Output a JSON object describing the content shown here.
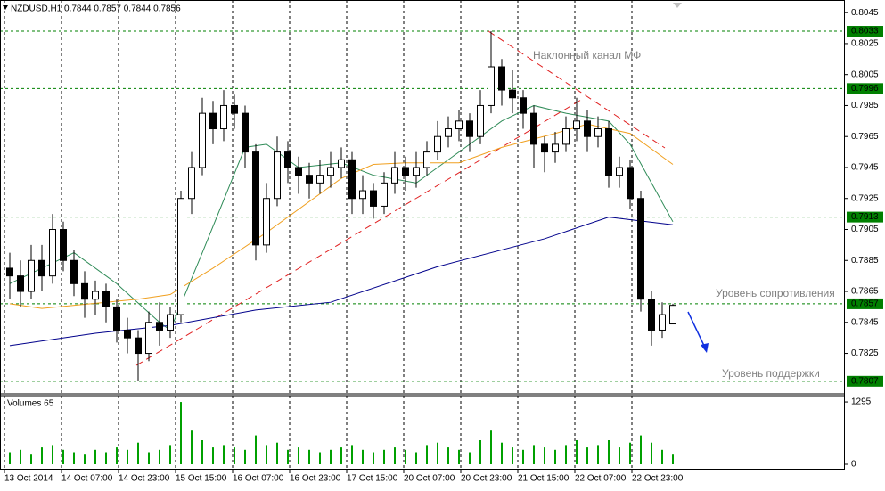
{
  "chart_data": {
    "type": "candlestick",
    "title": "NZDUSD,H1  0.7844 0.7857 0.7844 0.7856",
    "x": [
      1.5,
      4.5,
      7.5,
      10.5,
      13.5,
      16.5,
      19.5,
      22.5,
      25.5,
      28.5,
      31.5,
      34.5,
      37.5,
      40.5,
      43.5,
      46.5,
      49.5,
      52.5,
      55.5,
      58.5,
      61.5,
      64.5,
      67.5,
      70.5,
      73.5,
      76.5,
      79.5,
      82.5,
      85.5,
      88.5,
      91.5,
      94.5,
      97.5,
      100.5,
      103.5,
      106.5,
      109.5,
      112.5,
      115.5,
      118.5,
      121.5,
      124.5,
      127.5,
      130.5,
      133.5,
      136.5,
      139.5,
      142.5,
      145.5,
      148.5,
      151.5,
      154.5,
      157.5,
      160.5,
      163.5,
      166.5,
      169.5,
      172.5,
      175.5,
      178.5,
      181.5,
      184.5,
      187.5
    ],
    "open": [
      0.788,
      0.7875,
      0.7865,
      0.7885,
      0.7875,
      0.7905,
      0.7885,
      0.787,
      0.786,
      0.7865,
      0.7855,
      0.784,
      0.7835,
      0.7825,
      0.7845,
      0.784,
      0.785,
      0.7925,
      0.7945,
      0.798,
      0.797,
      0.7985,
      0.798,
      0.7955,
      0.7895,
      0.7925,
      0.7955,
      0.7945,
      0.794,
      0.7935,
      0.794,
      0.7945,
      0.795,
      0.7925,
      0.793,
      0.792,
      0.7935,
      0.7945,
      0.794,
      0.7945,
      0.7955,
      0.7965,
      0.797,
      0.7975,
      0.7965,
      0.7985,
      0.801,
      0.7995,
      0.799,
      0.798,
      0.796,
      0.7955,
      0.796,
      0.797,
      0.7975,
      0.7965,
      0.797,
      0.794,
      0.7945,
      0.7925,
      0.786,
      0.784,
      0.7844
    ],
    "high": [
      0.789,
      0.7885,
      0.7895,
      0.7895,
      0.7915,
      0.791,
      0.7892,
      0.7878,
      0.7872,
      0.787,
      0.786,
      0.7848,
      0.784,
      0.7852,
      0.7858,
      0.7855,
      0.793,
      0.7955,
      0.799,
      0.7988,
      0.7995,
      0.7992,
      0.7985,
      0.796,
      0.7935,
      0.7965,
      0.7962,
      0.7952,
      0.7948,
      0.795,
      0.7955,
      0.7958,
      0.7955,
      0.794,
      0.7935,
      0.7942,
      0.7955,
      0.7952,
      0.7955,
      0.7962,
      0.7975,
      0.7978,
      0.7982,
      0.798,
      0.7995,
      0.8033,
      0.8015,
      0.8008,
      0.7995,
      0.7985,
      0.7965,
      0.7968,
      0.7978,
      0.799,
      0.7982,
      0.7978,
      0.7975,
      0.7952,
      0.795,
      0.793,
      0.7865,
      0.7858,
      0.7857
    ],
    "low": [
      0.786,
      0.7855,
      0.786,
      0.7865,
      0.787,
      0.7878,
      0.7862,
      0.7848,
      0.785,
      0.7845,
      0.7832,
      0.7825,
      0.7807,
      0.782,
      0.783,
      0.7835,
      0.7845,
      0.7915,
      0.794,
      0.796,
      0.7962,
      0.797,
      0.7945,
      0.7885,
      0.789,
      0.792,
      0.7935,
      0.7928,
      0.7925,
      0.7928,
      0.7932,
      0.7938,
      0.7915,
      0.7915,
      0.7912,
      0.7915,
      0.7928,
      0.793,
      0.7932,
      0.794,
      0.795,
      0.7958,
      0.7962,
      0.7955,
      0.796,
      0.798,
      0.7985,
      0.798,
      0.797,
      0.7945,
      0.7942,
      0.7948,
      0.7955,
      0.7962,
      0.7955,
      0.7958,
      0.7932,
      0.7932,
      0.7918,
      0.7852,
      0.783,
      0.7835,
      0.7844
    ],
    "close": [
      0.7875,
      0.7865,
      0.7885,
      0.7875,
      0.7905,
      0.7885,
      0.787,
      0.786,
      0.7865,
      0.7855,
      0.784,
      0.7835,
      0.7825,
      0.7845,
      0.784,
      0.785,
      0.7925,
      0.7945,
      0.798,
      0.797,
      0.7985,
      0.798,
      0.7955,
      0.7895,
      0.7925,
      0.7955,
      0.7945,
      0.794,
      0.7935,
      0.794,
      0.7945,
      0.795,
      0.7925,
      0.793,
      0.792,
      0.7935,
      0.7945,
      0.794,
      0.7945,
      0.7955,
      0.7965,
      0.797,
      0.7975,
      0.7965,
      0.7985,
      0.801,
      0.7995,
      0.799,
      0.798,
      0.796,
      0.7955,
      0.796,
      0.797,
      0.7975,
      0.7965,
      0.797,
      0.794,
      0.7945,
      0.7925,
      0.786,
      0.784,
      0.785,
      0.7856
    ],
    "bull_color": "#ffffff",
    "bear_color": "#000000",
    "xlim": [
      -1.25,
      235.75
    ],
    "xticks": [
      {
        "value": 0,
        "label": "13 Oct 2014"
      },
      {
        "value": 16,
        "label": "14 Oct 07:00"
      },
      {
        "value": 32,
        "label": "14 Oct 23:00"
      },
      {
        "value": 48,
        "label": "15 Oct 15:00"
      },
      {
        "value": 64,
        "label": "16 Oct 07:00"
      },
      {
        "value": 80,
        "label": "16 Oct 23:00"
      },
      {
        "value": 96,
        "label": "17 Oct 15:00"
      },
      {
        "value": 112,
        "label": "20 Oct 07:00"
      },
      {
        "value": 128,
        "label": "20 Oct 23:00"
      },
      {
        "value": 144,
        "label": "21 Oct 15:00"
      },
      {
        "value": 160,
        "label": "22 Oct 07:00"
      },
      {
        "value": 176,
        "label": "22 Oct 23:00"
      }
    ],
    "ylim": [
      0.78,
      0.8052
    ],
    "yticks": [
      0.8045,
      0.8025,
      0.8005,
      0.7985,
      0.7965,
      0.7945,
      0.7925,
      0.7905,
      0.7885,
      0.7865,
      0.7845,
      0.7825
    ],
    "levels": [
      0.8033,
      0.7996,
      0.7913,
      0.7857,
      0.7807
    ],
    "level_color": "#008000",
    "moving_averages": [
      {
        "color": "#2e8b57",
        "x": [
          1.5,
          19.5,
          31.5,
          43.5,
          46.5,
          55.5,
          67.5,
          73.5,
          82.5,
          94.5,
          103.5,
          115.5,
          127.5,
          139.5,
          148.5,
          157.5,
          169.5,
          175.5,
          181.5,
          187.5
        ],
        "values": [
          0.787,
          0.789,
          0.787,
          0.7845,
          0.784,
          0.789,
          0.7958,
          0.796,
          0.7945,
          0.7948,
          0.794,
          0.7935,
          0.7955,
          0.7975,
          0.7985,
          0.798,
          0.7975,
          0.796,
          0.7935,
          0.791
        ]
      },
      {
        "color": "#f0a020",
        "x": [
          1.5,
          10.5,
          37.5,
          46.5,
          58.5,
          73.5,
          94.5,
          103.5,
          112.5,
          127.5,
          139.5,
          154.5,
          163.5,
          175.5,
          187.5
        ],
        "values": [
          0.7857,
          0.7854,
          0.786,
          0.7863,
          0.788,
          0.7903,
          0.7938,
          0.7947,
          0.7948,
          0.7948,
          0.7958,
          0.7967,
          0.7973,
          0.7967,
          0.7947
        ]
      },
      {
        "color": "#00008b",
        "x": [
          1.5,
          25.5,
          46.5,
          70.5,
          91.5,
          121.5,
          151.5,
          169.5,
          187.5
        ],
        "values": [
          0.783,
          0.7838,
          0.7843,
          0.7853,
          0.7858,
          0.7881,
          0.7899,
          0.7913,
          0.7908
        ]
      }
    ],
    "annotations": [
      "Наклонный канал МФ",
      "Уровень сопротивления",
      "Уровень поддержки"
    ],
    "volume": {
      "title": "Volumes 65",
      "color": "#00a000",
      "ylim": [
        0,
        1370
      ],
      "yticks": [
        1295,
        0
      ],
      "values": [
        250,
        300,
        200,
        350,
        400,
        300,
        250,
        200,
        300,
        250,
        350,
        300,
        450,
        250,
        300,
        400,
        1295,
        700,
        500,
        350,
        400,
        350,
        300,
        600,
        400,
        450,
        300,
        350,
        300,
        250,
        300,
        350,
        400,
        300,
        250,
        300,
        350,
        300,
        250,
        400,
        450,
        350,
        300,
        250,
        500,
        700,
        450,
        350,
        300,
        400,
        350,
        300,
        400,
        500,
        350,
        400,
        500,
        350,
        450,
        600,
        450,
        300,
        200
      ]
    }
  }
}
